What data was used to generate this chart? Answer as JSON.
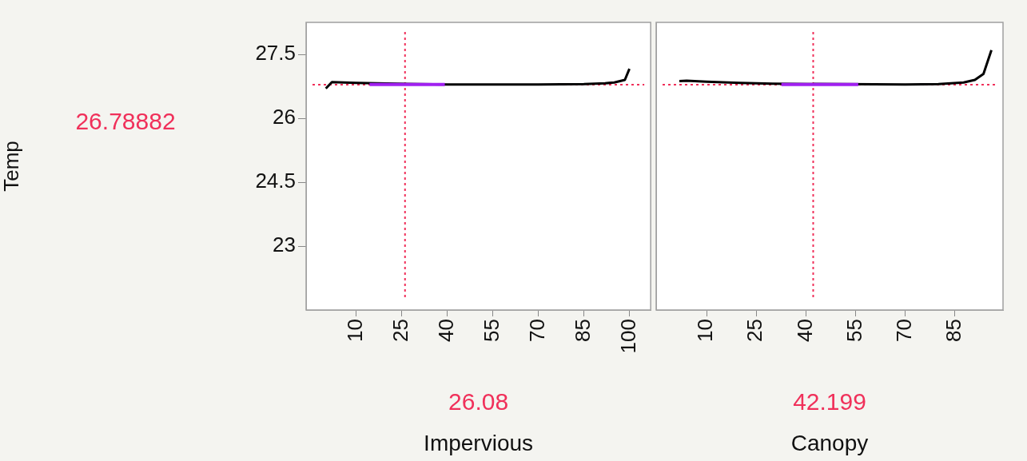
{
  "chart_data": [
    {
      "type": "line",
      "xlabel": "Impervious",
      "ylabel": "Temp",
      "xlim": [
        -6.5,
        107
      ],
      "xticks": [
        10,
        25,
        40,
        55,
        70,
        85,
        100
      ],
      "ylim": [
        21.5,
        28.25
      ],
      "yticks": [
        23,
        24.5,
        26,
        27.5
      ],
      "grid": false,
      "legend": false,
      "series": [
        {
          "color": "#000000",
          "x": [
            0,
            2,
            10,
            40,
            55,
            70,
            85,
            92,
            95,
            98.5,
            100
          ],
          "values": [
            26.7,
            26.85,
            26.83,
            26.79,
            26.79,
            26.79,
            26.8,
            26.82,
            26.84,
            26.9,
            27.16
          ]
        },
        {
          "color": "#a020f0",
          "x": [
            14.4,
            26.08,
            39.2
          ],
          "values": [
            26.79,
            26.79,
            26.79
          ]
        }
      ],
      "ref_lines": [
        {
          "axis": "y",
          "value": 26.78882,
          "label": "26.78882",
          "color": "#f0305a",
          "line_style": "dotted"
        },
        {
          "axis": "x",
          "value": 26.08,
          "label": "26.08",
          "color": "#f0305a",
          "line_style": "dotted"
        }
      ]
    },
    {
      "type": "line",
      "xlabel": "Canopy",
      "xlim": [
        -5.2,
        99.5
      ],
      "xticks": [
        10,
        25,
        40,
        55,
        70,
        85
      ],
      "ylim": [
        21.5,
        28.25
      ],
      "yticks": [
        23,
        24.5,
        26,
        27.5
      ],
      "tick_labels": "x",
      "grid": false,
      "legend": false,
      "series": [
        {
          "color": "#000000",
          "x": [
            1.8,
            4,
            10,
            20,
            30,
            70,
            80,
            87.6,
            91,
            93.6,
            96
          ],
          "values": [
            26.87,
            26.88,
            26.86,
            26.83,
            26.81,
            26.79,
            26.8,
            26.84,
            26.9,
            27.04,
            27.6
          ]
        },
        {
          "color": "#a020f0",
          "x": [
            32.6,
            42.199,
            55.8
          ],
          "values": [
            26.79,
            26.79,
            26.79
          ]
        }
      ],
      "ref_lines": [
        {
          "axis": "y",
          "value": 26.78882,
          "color": "#f0305a",
          "line_style": "dotted"
        },
        {
          "axis": "x",
          "value": 42.199,
          "label": "42.199",
          "color": "#f0305a",
          "line_style": "dotted"
        }
      ]
    }
  ]
}
